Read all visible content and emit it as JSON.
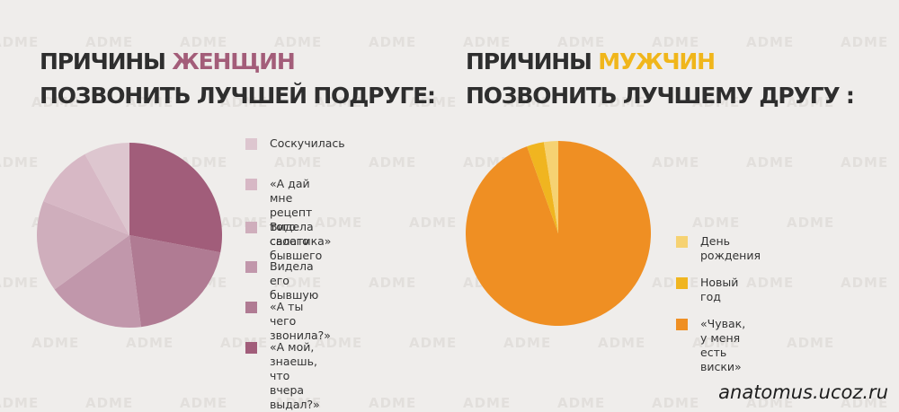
{
  "watermark": "ADME",
  "footer": "anatomus.ucoz.ru",
  "chart_data": [
    {
      "type": "pie",
      "title_prefix": "ПРИЧИНЫ ",
      "title_highlight": "ЖЕНЩИН",
      "title_line2": "ПОЗВОНИТЬ ЛУЧШЕЙ ПОДРУГЕ:",
      "highlight_color": "#a35d79",
      "slices": [
        {
          "label": "Соскучилась",
          "value": 8,
          "color": "#ddc6cf"
        },
        {
          "label": "«А дай мне рецепт\nтого салатика»",
          "value": 11,
          "color": "#d7b8c5"
        },
        {
          "label": "Видела своего бывшего",
          "value": 16,
          "color": "#cfaebc"
        },
        {
          "label": "Видела его бывшую",
          "value": 17,
          "color": "#c197ab"
        },
        {
          "label": "«А ты чего звонила?»",
          "value": 20,
          "color": "#b07b93"
        },
        {
          "label": "«А мой, знаешь,\nчто вчера выдал?»",
          "value": 28,
          "color": "#a15d7a"
        }
      ]
    },
    {
      "type": "pie",
      "title_prefix": "ПРИЧИНЫ ",
      "title_highlight": "МУЖЧИН",
      "title_line2": "ПОЗВОНИТЬ ЛУЧШЕМУ ДРУГУ :",
      "highlight_color": "#f0b61b",
      "slices": [
        {
          "label": "День рождения",
          "value": 2.5,
          "color": "#f6d272"
        },
        {
          "label": "Новый год",
          "value": 3,
          "color": "#f0b520"
        },
        {
          "label": "«Чувак, у меня есть виски»",
          "value": 94.5,
          "color": "#ef8f23"
        }
      ]
    }
  ]
}
